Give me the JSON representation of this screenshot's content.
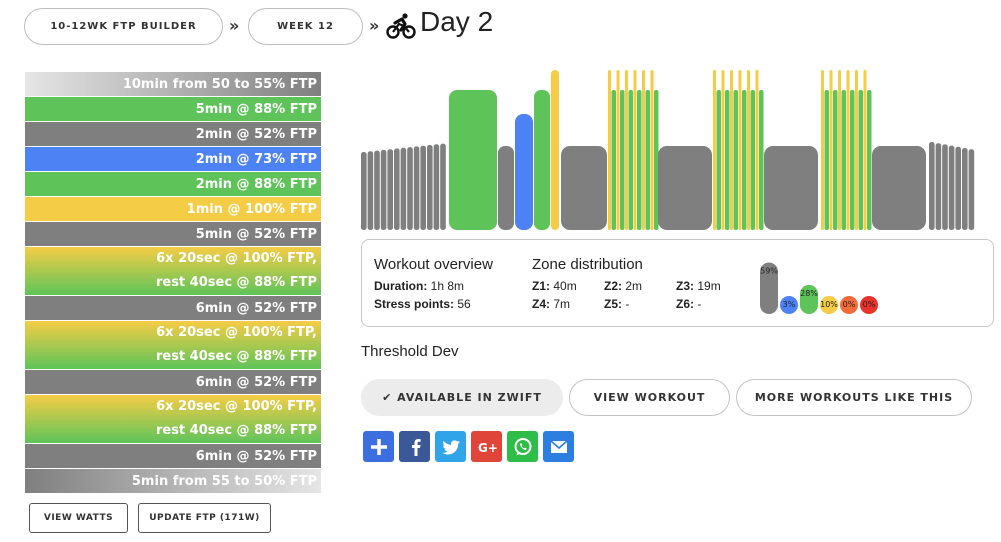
{
  "breadcrumb": {
    "plan": "10-12WK FTP BUILDER",
    "week": "WEEK 12",
    "separator": "»",
    "title": "Day 2"
  },
  "intervals": [
    {
      "lines": [
        "10min from 50 to 55% FTP"
      ],
      "bg": "linear-gradient(to right, #e6e6e6 0%, #7f7f7f 100%)"
    },
    {
      "lines": [
        "5min @ 88% FTP"
      ],
      "bg": "#5ec45a"
    },
    {
      "lines": [
        "2min @ 52% FTP"
      ],
      "bg": "#7f7f7f"
    },
    {
      "lines": [
        "2min @ 73% FTP"
      ],
      "bg": "#4d82f5"
    },
    {
      "lines": [
        "2min @ 88% FTP"
      ],
      "bg": "#5ec45a"
    },
    {
      "lines": [
        "1min @ 100% FTP"
      ],
      "bg": "#f5cc45"
    },
    {
      "lines": [
        "5min @ 52% FTP"
      ],
      "bg": "#7f7f7f"
    },
    {
      "lines": [
        "6x 20sec @ 100% FTP,",
        "rest 40sec @ 88% FTP"
      ],
      "bg": "linear-gradient(to bottom, #f5cc45 0%, #5ec45a 100%)"
    },
    {
      "lines": [
        "6min @ 52% FTP"
      ],
      "bg": "#7f7f7f"
    },
    {
      "lines": [
        "6x 20sec @ 100% FTP,",
        "rest 40sec @ 88% FTP"
      ],
      "bg": "linear-gradient(to bottom, #f5cc45 0%, #5ec45a 100%)"
    },
    {
      "lines": [
        "6min @ 52% FTP"
      ],
      "bg": "#7f7f7f"
    },
    {
      "lines": [
        "6x 20sec @ 100% FTP,",
        "rest 40sec @ 88% FTP"
      ],
      "bg": "linear-gradient(to bottom, #f5cc45 0%, #5ec45a 100%)"
    },
    {
      "lines": [
        "6min @ 52% FTP"
      ],
      "bg": "#7f7f7f"
    },
    {
      "lines": [
        "5min from 55 to 50% FTP"
      ],
      "bg": "linear-gradient(to right, #7f7f7f 0%, #e6e6e6 100%)"
    }
  ],
  "left_buttons": {
    "view_watts": "VIEW WATTS",
    "update_ftp": "UPDATE FTP (171W)"
  },
  "overview": {
    "title": "Workout overview",
    "duration_label": "Duration:",
    "duration_value": "1h 8m",
    "stress_label": "Stress points:",
    "stress_value": "56",
    "zone_title": "Zone distribution",
    "zones": [
      {
        "label": "Z1:",
        "value": "40m"
      },
      {
        "label": "Z2:",
        "value": "2m"
      },
      {
        "label": "Z3:",
        "value": "19m"
      },
      {
        "label": "Z4:",
        "value": "7m"
      },
      {
        "label": "Z5:",
        "value": "-"
      },
      {
        "label": "Z6:",
        "value": "-"
      }
    ],
    "zone_pct": [
      {
        "label": "59%",
        "value": 59,
        "color": "#7f7f7f"
      },
      {
        "label": "3%",
        "value": 3,
        "color": "#4d82f5"
      },
      {
        "label": "28%",
        "value": 28,
        "color": "#5ec45a"
      },
      {
        "label": "10%",
        "value": 10,
        "color": "#f5cc45"
      },
      {
        "label": "0%",
        "value": 0,
        "color": "#f26b3a"
      },
      {
        "label": "0%",
        "value": 0,
        "color": "#e8322b"
      }
    ]
  },
  "workout_name": "Threshold Dev",
  "actions": {
    "zwift": "✔ AVAILABLE IN ZWIFT",
    "view_workout": "VIEW WORKOUT",
    "more_like": "MORE WORKOUTS LIKE THIS"
  },
  "share_icons": [
    {
      "name": "share-plus-icon",
      "color": "#3d6ee0"
    },
    {
      "name": "facebook-icon",
      "color": "#3b5998"
    },
    {
      "name": "twitter-icon",
      "color": "#2fa4e8"
    },
    {
      "name": "google-plus-icon",
      "color": "#e0453a"
    },
    {
      "name": "whatsapp-icon",
      "color": "#2ebd48"
    },
    {
      "name": "email-icon",
      "color": "#2c7ee0"
    }
  ],
  "workout_profile": {
    "colors": {
      "z1": "#7f7f7f",
      "z2": "#4d82f5",
      "z3": "#5ec45a",
      "z4": "#f5cc45"
    }
  }
}
